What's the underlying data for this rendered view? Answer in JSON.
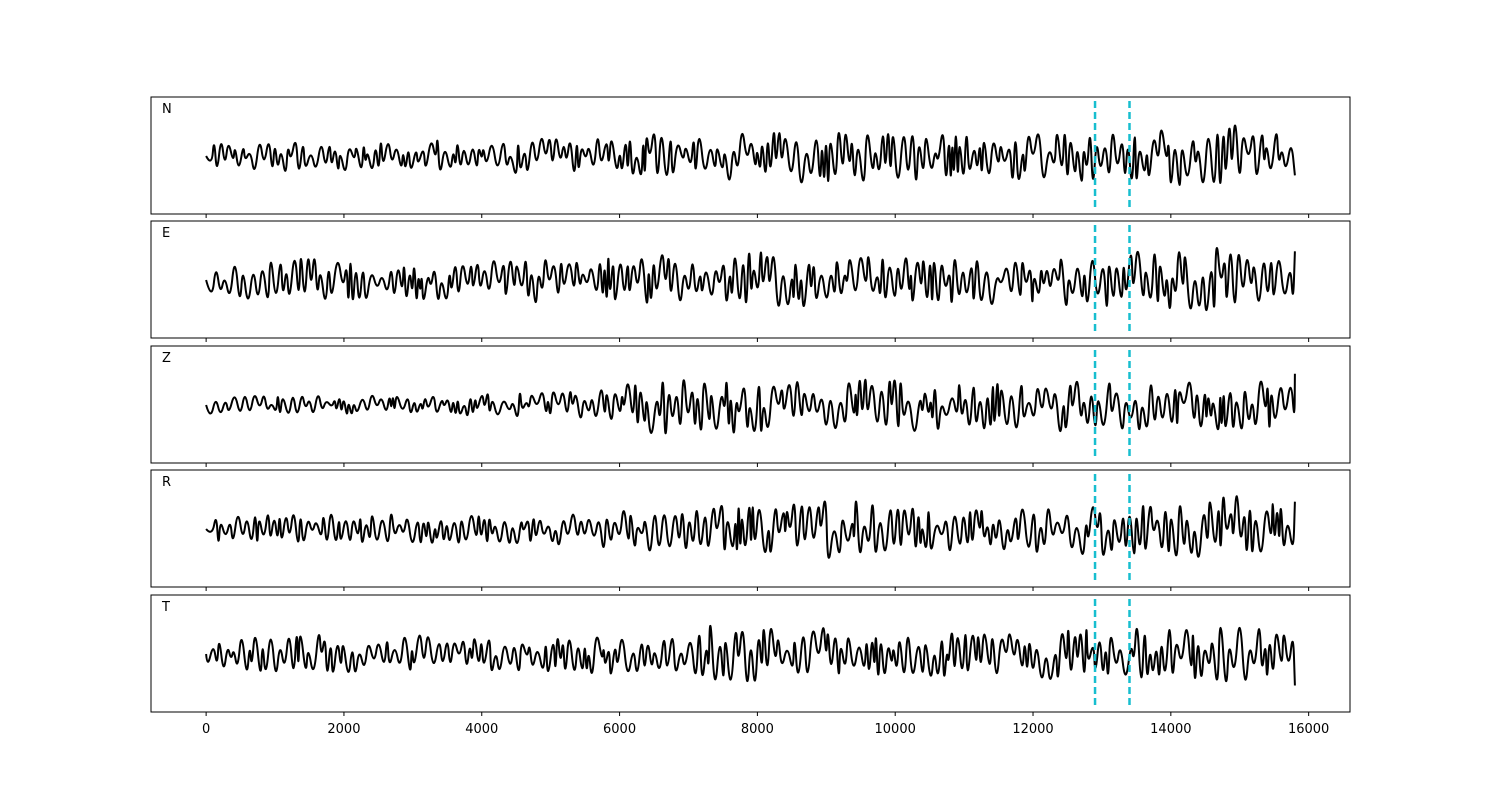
{
  "chart_data": {
    "type": "line",
    "title": "",
    "xlabel": "",
    "ylabel": "",
    "xlim": [
      -800,
      16600
    ],
    "x_ticks": [
      0,
      2000,
      4000,
      6000,
      8000,
      10000,
      12000,
      14000,
      16000
    ],
    "x_tick_labels": [
      "0",
      "2000",
      "4000",
      "6000",
      "8000",
      "10000",
      "12000",
      "14000",
      "16000"
    ],
    "x_range": [
      0,
      15800
    ],
    "grid": false,
    "line_color": "#000000",
    "marker_color": "#17becf",
    "vertical_markers": [
      12900,
      13400
    ],
    "panels": [
      {
        "label": "N",
        "seed": 11,
        "envelope": [
          [
            0,
            0.45
          ],
          [
            4000,
            0.5
          ],
          [
            6000,
            0.55
          ],
          [
            6500,
            0.7
          ],
          [
            8000,
            0.75
          ],
          [
            9400,
            0.95
          ],
          [
            11000,
            0.7
          ],
          [
            12500,
            0.75
          ],
          [
            13400,
            0.8
          ],
          [
            14800,
            1.0
          ],
          [
            15000,
            0.95
          ],
          [
            15800,
            0.6
          ]
        ]
      },
      {
        "label": "E",
        "seed": 23,
        "envelope": [
          [
            0,
            0.45
          ],
          [
            1000,
            0.7
          ],
          [
            2000,
            0.75
          ],
          [
            3500,
            0.55
          ],
          [
            5000,
            0.7
          ],
          [
            7000,
            0.8
          ],
          [
            7300,
            0.95
          ],
          [
            9000,
            0.8
          ],
          [
            10500,
            0.75
          ],
          [
            12000,
            0.7
          ],
          [
            13000,
            0.85
          ],
          [
            14800,
            1.0
          ],
          [
            15800,
            0.8
          ]
        ]
      },
      {
        "label": "Z",
        "seed": 37,
        "envelope": [
          [
            0,
            0.3
          ],
          [
            3000,
            0.3
          ],
          [
            5000,
            0.4
          ],
          [
            6000,
            0.55
          ],
          [
            6600,
            1.0
          ],
          [
            7300,
            0.9
          ],
          [
            9000,
            0.75
          ],
          [
            9700,
            0.85
          ],
          [
            11000,
            0.7
          ],
          [
            12000,
            0.8
          ],
          [
            14000,
            0.7
          ],
          [
            15000,
            0.75
          ],
          [
            15800,
            0.75
          ]
        ]
      },
      {
        "label": "R",
        "seed": 41,
        "envelope": [
          [
            0,
            0.4
          ],
          [
            1800,
            0.55
          ],
          [
            3500,
            0.45
          ],
          [
            5000,
            0.5
          ],
          [
            6500,
            0.7
          ],
          [
            8000,
            0.75
          ],
          [
            9300,
            0.95
          ],
          [
            11000,
            0.65
          ],
          [
            12500,
            0.75
          ],
          [
            13400,
            0.85
          ],
          [
            14800,
            1.0
          ],
          [
            15100,
            0.95
          ],
          [
            15800,
            0.6
          ]
        ]
      },
      {
        "label": "T",
        "seed": 53,
        "envelope": [
          [
            0,
            0.35
          ],
          [
            1000,
            0.65
          ],
          [
            2500,
            0.6
          ],
          [
            4000,
            0.55
          ],
          [
            5500,
            0.6
          ],
          [
            7000,
            0.55
          ],
          [
            7300,
            0.95
          ],
          [
            9000,
            0.75
          ],
          [
            10500,
            0.7
          ],
          [
            12000,
            0.7
          ],
          [
            13100,
            0.85
          ],
          [
            14800,
            1.0
          ],
          [
            15800,
            0.7
          ]
        ]
      }
    ]
  }
}
